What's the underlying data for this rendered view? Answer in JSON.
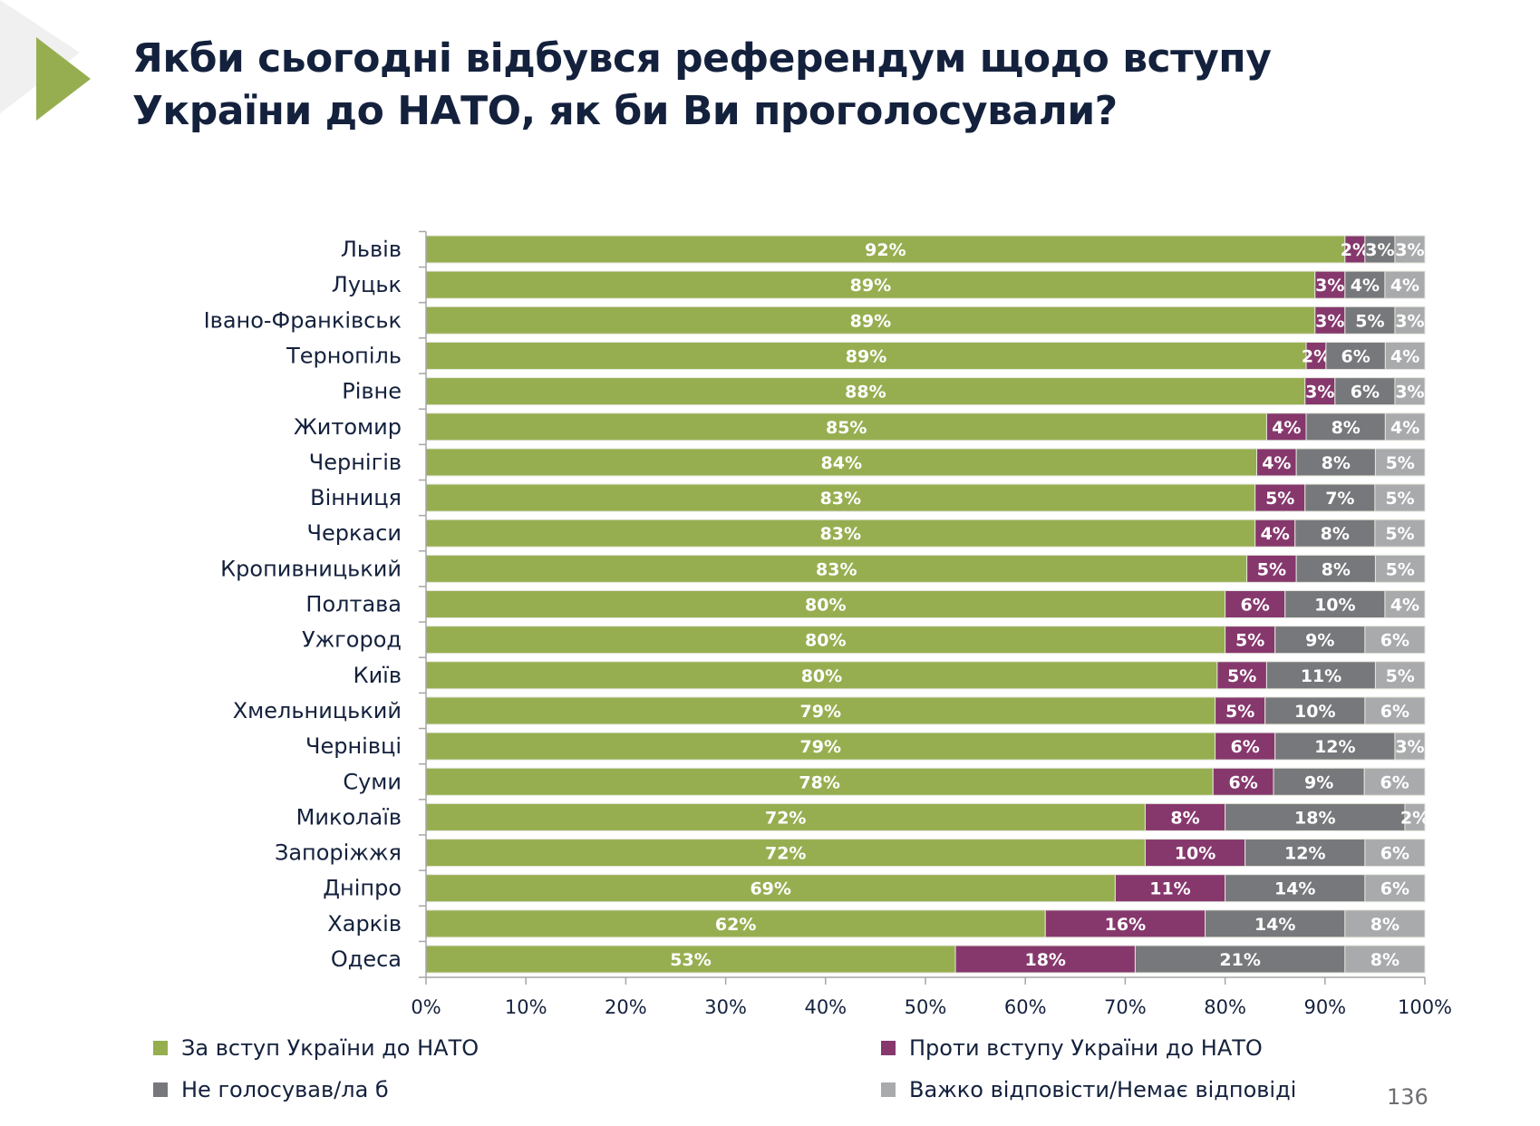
{
  "slide": {
    "title_lines": [
      "Якби сьогодні відбувся референдум щодо вступу",
      "України до НАТО, як би Ви проголосували?"
    ],
    "page_number": "136"
  },
  "chart_data": {
    "type": "bar",
    "orientation": "horizontal",
    "stacked": true,
    "title": "Якби сьогодні відбувся референдум щодо вступу України до НАТО, як би Ви проголосували?",
    "xlabel": "",
    "ylabel": "",
    "xlim": [
      0,
      100
    ],
    "x_ticks": [
      "0%",
      "10%",
      "20%",
      "30%",
      "40%",
      "50%",
      "60%",
      "70%",
      "80%",
      "90%",
      "100%"
    ],
    "grid": false,
    "legend_position": "bottom",
    "categories": [
      "Львів",
      "Луцьк",
      "Івано-Франківськ",
      "Тернопіль",
      "Рівне",
      "Житомир",
      "Чернігів",
      "Вінниця",
      "Черкаси",
      "Кропивницький",
      "Полтава",
      "Ужгород",
      "Київ",
      "Хмельницький",
      "Чернівці",
      "Суми",
      "Миколаїв",
      "Запоріжжя",
      "Дніпро",
      "Харків",
      "Одеса"
    ],
    "series": [
      {
        "name": "За вступ України до НАТО",
        "color": "#97ae50",
        "values": [
          92,
          89,
          89,
          89,
          88,
          85,
          84,
          83,
          83,
          83,
          80,
          80,
          80,
          79,
          79,
          78,
          72,
          72,
          69,
          62,
          53
        ]
      },
      {
        "name": "Проти вступу України до НАТО",
        "color": "#86386d",
        "values": [
          2,
          3,
          3,
          2,
          3,
          4,
          4,
          5,
          4,
          5,
          6,
          5,
          5,
          5,
          6,
          6,
          8,
          10,
          11,
          16,
          18
        ]
      },
      {
        "name": "Не голосував/ла б",
        "color": "#77787b",
        "values": [
          3,
          4,
          5,
          6,
          6,
          8,
          8,
          7,
          8,
          8,
          10,
          9,
          11,
          10,
          12,
          9,
          18,
          12,
          14,
          14,
          21
        ]
      },
      {
        "name": "Важко відповісти/Немає відповіді",
        "color": "#a9aaac",
        "values": [
          3,
          4,
          3,
          4,
          3,
          4,
          5,
          5,
          5,
          5,
          4,
          6,
          5,
          6,
          3,
          6,
          2,
          6,
          6,
          8,
          8
        ]
      }
    ],
    "value_label_suffix": "%"
  }
}
